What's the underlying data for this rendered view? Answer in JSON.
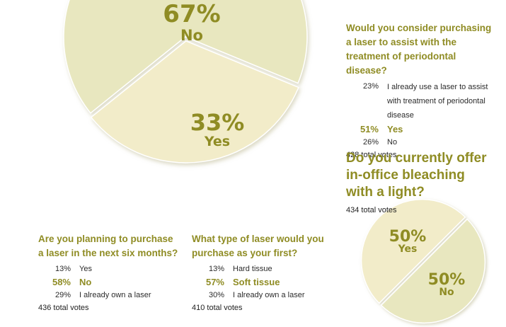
{
  "chart_data": [
    {
      "type": "pie",
      "slices": [
        {
          "value": 67,
          "label": "No",
          "pct_text": "67%",
          "color": "#e8e7bf"
        },
        {
          "value": 33,
          "label": "Yes",
          "pct_text": "33%",
          "color": "#f2ecc9"
        }
      ]
    },
    {
      "type": "pie",
      "slices": [
        {
          "value": 50,
          "label": "Yes",
          "pct_text": "50%",
          "color": "#f2ecc9"
        },
        {
          "value": 50,
          "label": "No",
          "pct_text": "50%",
          "color": "#e8e7bf"
        }
      ]
    }
  ],
  "polls": {
    "perio": {
      "question": "Would you consider purchasing a laser to assist with the treatment of periodontal disease?",
      "answers": [
        {
          "pct": "23%",
          "text": "I already use a laser to assist with treatment of periodontal disease",
          "highlight": false
        },
        {
          "pct": "51%",
          "text": "Yes",
          "highlight": true
        },
        {
          "pct": "26%",
          "text": "No",
          "highlight": false
        }
      ],
      "total": "428 total votes"
    },
    "bleach": {
      "question": "Do you currently offer in-office bleaching with a light?",
      "total": "434 total votes"
    },
    "purchase": {
      "question": "Are you planning to purchase a laser in the next six months?",
      "answers": [
        {
          "pct": "13%",
          "text": "Yes",
          "highlight": false
        },
        {
          "pct": "58%",
          "text": "No",
          "highlight": true
        },
        {
          "pct": "29%",
          "text": "I already own a laser",
          "highlight": false
        }
      ],
      "total": "436 total votes"
    },
    "type": {
      "question": "What type of laser would you purchase as your first?",
      "answers": [
        {
          "pct": "13%",
          "text": "Hard tissue",
          "highlight": false
        },
        {
          "pct": "57%",
          "text": "Soft tissue",
          "highlight": true
        },
        {
          "pct": "30%",
          "text": "I already own a laser",
          "highlight": false
        }
      ],
      "total": "410 total votes"
    }
  },
  "colors": {
    "accent": "#8f8c24",
    "slice_light": "#e8e7bf",
    "slice_cream": "#f2ecc9"
  }
}
